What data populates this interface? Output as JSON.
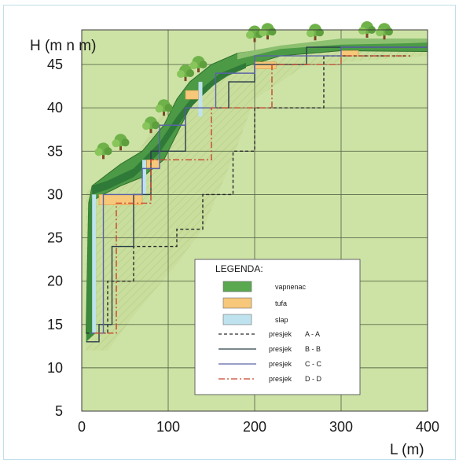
{
  "chart_data": {
    "type": "line",
    "ylabel": "H (m n m)",
    "xlabel": "L (m)",
    "xlim": [
      0,
      400
    ],
    "ylim": [
      5,
      49
    ],
    "x_ticks": [
      "0",
      "100",
      "200",
      "300",
      "400"
    ],
    "y_ticks": [
      "5",
      "10",
      "15",
      "20",
      "25",
      "30",
      "35",
      "40",
      "45"
    ],
    "grid": true,
    "legend": {
      "title": "LEGENDA:",
      "placement": "lower-right",
      "fill_items": [
        {
          "label": "vapnenac",
          "color": "#5aa850"
        },
        {
          "label": "tufa",
          "color": "#f7c77a"
        },
        {
          "label": "slap",
          "color": "#bfe3ee"
        }
      ],
      "line_items": [
        {
          "prefix": "presjek",
          "label": "A - A",
          "series": 0
        },
        {
          "prefix": "presjek",
          "label": "B - B",
          "series": 1
        },
        {
          "prefix": "presjek",
          "label": "C - C",
          "series": 2
        },
        {
          "prefix": "presjek",
          "label": "D - D",
          "series": 3
        }
      ]
    },
    "series": [
      {
        "name": "A - A",
        "color": "#2a2a2a",
        "dash": "4,3",
        "x": [
          5,
          30,
          30,
          60,
          60,
          110,
          110,
          140,
          140,
          175,
          175,
          200,
          200,
          280,
          280,
          380
        ],
        "y": [
          14,
          14,
          20,
          20,
          24,
          24,
          26,
          26,
          30,
          30,
          35,
          35,
          40,
          40,
          46,
          46
        ]
      },
      {
        "name": "B - B",
        "color": "#2a3d4a",
        "dash": "",
        "x": [
          5,
          20,
          20,
          35,
          35,
          60,
          60,
          80,
          80,
          120,
          120,
          170,
          170,
          200,
          200,
          260,
          260,
          400
        ],
        "y": [
          13,
          13,
          15,
          15,
          24,
          24,
          30,
          30,
          35,
          35,
          40,
          40,
          43,
          43,
          45,
          45,
          47,
          47
        ]
      },
      {
        "name": "C - C",
        "color": "#5a63a8",
        "dash": "",
        "x": [
          10,
          25,
          25,
          70,
          70,
          90,
          90,
          120,
          120,
          155,
          155,
          200,
          200,
          300,
          300,
          400
        ],
        "y": [
          14,
          14,
          30,
          30,
          33,
          33,
          38,
          38,
          40,
          40,
          44,
          44,
          46,
          46,
          47,
          47
        ]
      },
      {
        "name": "D - D",
        "color": "#c8452c",
        "dash": "8,3,2,3",
        "x": [
          15,
          40,
          40,
          80,
          80,
          150,
          150,
          220,
          220,
          300,
          300,
          380
        ],
        "y": [
          14,
          14,
          29,
          29,
          34,
          34,
          40,
          40,
          45,
          45,
          46,
          46
        ]
      }
    ]
  }
}
